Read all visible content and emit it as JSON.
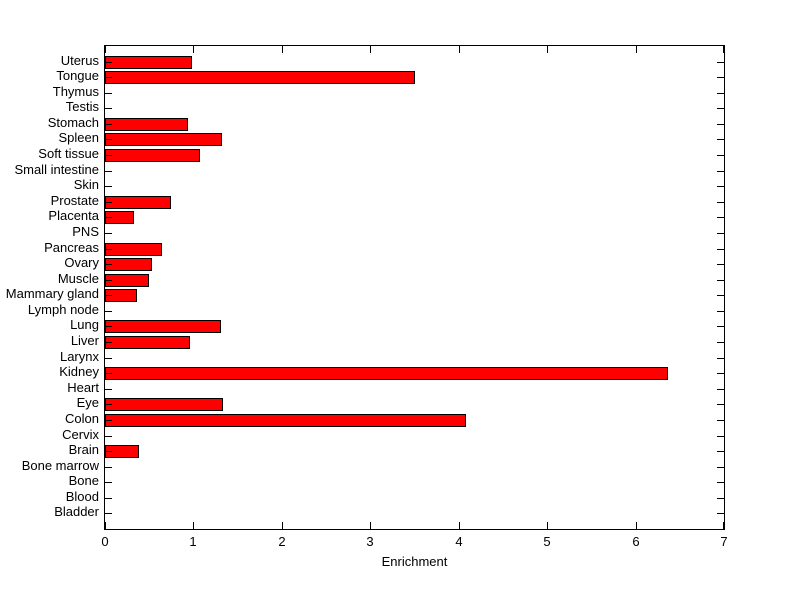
{
  "figure": {
    "background": "#ffffff",
    "axis_color": "#000000"
  },
  "chart_data": {
    "type": "bar",
    "orientation": "horizontal",
    "title": "",
    "xlabel": "Enrichment",
    "ylabel": "",
    "xlim": [
      0,
      7
    ],
    "xticks": [
      "0",
      "1",
      "2",
      "3",
      "4",
      "5",
      "6",
      "7"
    ],
    "grid": false,
    "legend": "none",
    "bar_color": "#ff0000",
    "bar_edge_color": "#000000",
    "categories": [
      "Uterus",
      "Tongue",
      "Thymus",
      "Testis",
      "Stomach",
      "Spleen",
      "Soft tissue",
      "Small intestine",
      "Skin",
      "Prostate",
      "Placenta",
      "PNS",
      "Pancreas",
      "Ovary",
      "Muscle",
      "Mammary gland",
      "Lymph node",
      "Lung",
      "Liver",
      "Larynx",
      "Kidney",
      "Heart",
      "Eye",
      "Colon",
      "Cervix",
      "Brain",
      "Bone marrow",
      "Bone",
      "Blood",
      "Bladder"
    ],
    "values": [
      0.98,
      3.51,
      0,
      0,
      0.94,
      1.32,
      1.07,
      0,
      0,
      0.75,
      0.33,
      0,
      0.64,
      0.53,
      0.5,
      0.36,
      0,
      1.31,
      0.96,
      0,
      6.37,
      0,
      1.34,
      4.08,
      0,
      0.39,
      0,
      0,
      0,
      0
    ]
  }
}
